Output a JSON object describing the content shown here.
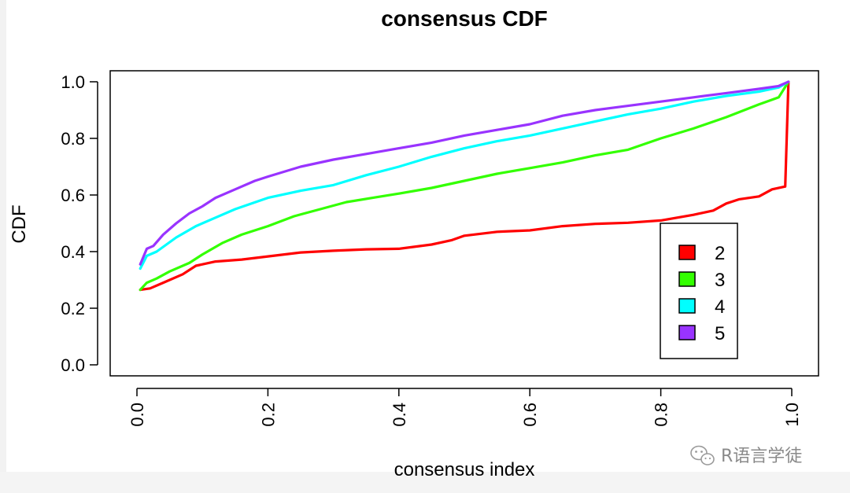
{
  "chart_data": {
    "type": "line",
    "title": "consensus CDF",
    "xlabel": "consensus index",
    "ylabel": "CDF",
    "xlim": [
      0,
      1
    ],
    "ylim": [
      0,
      1
    ],
    "x_ticks": [
      "0.0",
      "0.2",
      "0.4",
      "0.6",
      "0.8",
      "1.0"
    ],
    "y_ticks": [
      "0.0",
      "0.2",
      "0.4",
      "0.6",
      "0.8",
      "1.0"
    ],
    "grid": false,
    "legend_position": "bottom-right",
    "series": [
      {
        "name": "2",
        "color": "#ff0000",
        "points": [
          [
            0.005,
            0.265
          ],
          [
            0.02,
            0.27
          ],
          [
            0.04,
            0.29
          ],
          [
            0.07,
            0.32
          ],
          [
            0.09,
            0.35
          ],
          [
            0.12,
            0.365
          ],
          [
            0.16,
            0.372
          ],
          [
            0.2,
            0.383
          ],
          [
            0.25,
            0.397
          ],
          [
            0.3,
            0.403
          ],
          [
            0.35,
            0.408
          ],
          [
            0.4,
            0.41
          ],
          [
            0.45,
            0.425
          ],
          [
            0.48,
            0.44
          ],
          [
            0.5,
            0.456
          ],
          [
            0.55,
            0.47
          ],
          [
            0.6,
            0.475
          ],
          [
            0.65,
            0.49
          ],
          [
            0.7,
            0.498
          ],
          [
            0.75,
            0.502
          ],
          [
            0.8,
            0.51
          ],
          [
            0.85,
            0.53
          ],
          [
            0.88,
            0.545
          ],
          [
            0.9,
            0.57
          ],
          [
            0.92,
            0.585
          ],
          [
            0.95,
            0.595
          ],
          [
            0.97,
            0.62
          ],
          [
            0.99,
            0.63
          ],
          [
            0.995,
            1.0
          ]
        ]
      },
      {
        "name": "3",
        "color": "#33ff00",
        "points": [
          [
            0.005,
            0.265
          ],
          [
            0.015,
            0.29
          ],
          [
            0.03,
            0.305
          ],
          [
            0.05,
            0.33
          ],
          [
            0.08,
            0.36
          ],
          [
            0.1,
            0.39
          ],
          [
            0.13,
            0.43
          ],
          [
            0.16,
            0.46
          ],
          [
            0.2,
            0.49
          ],
          [
            0.24,
            0.525
          ],
          [
            0.28,
            0.55
          ],
          [
            0.32,
            0.575
          ],
          [
            0.36,
            0.59
          ],
          [
            0.4,
            0.605
          ],
          [
            0.45,
            0.625
          ],
          [
            0.5,
            0.65
          ],
          [
            0.55,
            0.675
          ],
          [
            0.6,
            0.695
          ],
          [
            0.65,
            0.715
          ],
          [
            0.7,
            0.74
          ],
          [
            0.75,
            0.76
          ],
          [
            0.8,
            0.8
          ],
          [
            0.85,
            0.835
          ],
          [
            0.9,
            0.875
          ],
          [
            0.95,
            0.92
          ],
          [
            0.98,
            0.945
          ],
          [
            0.995,
            1.0
          ]
        ]
      },
      {
        "name": "4",
        "color": "#00ffff",
        "points": [
          [
            0.005,
            0.34
          ],
          [
            0.015,
            0.385
          ],
          [
            0.03,
            0.4
          ],
          [
            0.06,
            0.45
          ],
          [
            0.09,
            0.49
          ],
          [
            0.12,
            0.52
          ],
          [
            0.15,
            0.55
          ],
          [
            0.2,
            0.59
          ],
          [
            0.25,
            0.615
          ],
          [
            0.3,
            0.635
          ],
          [
            0.35,
            0.67
          ],
          [
            0.4,
            0.7
          ],
          [
            0.45,
            0.735
          ],
          [
            0.5,
            0.765
          ],
          [
            0.55,
            0.79
          ],
          [
            0.6,
            0.81
          ],
          [
            0.65,
            0.835
          ],
          [
            0.7,
            0.86
          ],
          [
            0.75,
            0.885
          ],
          [
            0.8,
            0.905
          ],
          [
            0.85,
            0.93
          ],
          [
            0.9,
            0.95
          ],
          [
            0.95,
            0.965
          ],
          [
            0.98,
            0.98
          ],
          [
            0.995,
            1.0
          ]
        ]
      },
      {
        "name": "5",
        "color": "#9933ff",
        "points": [
          [
            0.005,
            0.355
          ],
          [
            0.015,
            0.41
          ],
          [
            0.025,
            0.42
          ],
          [
            0.04,
            0.46
          ],
          [
            0.06,
            0.5
          ],
          [
            0.08,
            0.535
          ],
          [
            0.1,
            0.56
          ],
          [
            0.12,
            0.59
          ],
          [
            0.15,
            0.62
          ],
          [
            0.18,
            0.65
          ],
          [
            0.2,
            0.665
          ],
          [
            0.25,
            0.7
          ],
          [
            0.3,
            0.725
          ],
          [
            0.35,
            0.745
          ],
          [
            0.4,
            0.765
          ],
          [
            0.45,
            0.785
          ],
          [
            0.5,
            0.81
          ],
          [
            0.55,
            0.83
          ],
          [
            0.6,
            0.85
          ],
          [
            0.65,
            0.88
          ],
          [
            0.7,
            0.9
          ],
          [
            0.75,
            0.915
          ],
          [
            0.8,
            0.93
          ],
          [
            0.85,
            0.945
          ],
          [
            0.9,
            0.96
          ],
          [
            0.95,
            0.975
          ],
          [
            0.98,
            0.985
          ],
          [
            0.995,
            1.0
          ]
        ]
      }
    ]
  },
  "legend": {
    "entries": [
      {
        "label": "2",
        "color": "#ff0000"
      },
      {
        "label": "3",
        "color": "#33ff00"
      },
      {
        "label": "4",
        "color": "#00ffff"
      },
      {
        "label": "5",
        "color": "#9933ff"
      }
    ]
  },
  "watermark": {
    "text": "R语言学徒",
    "icon": "wechat-icon"
  }
}
